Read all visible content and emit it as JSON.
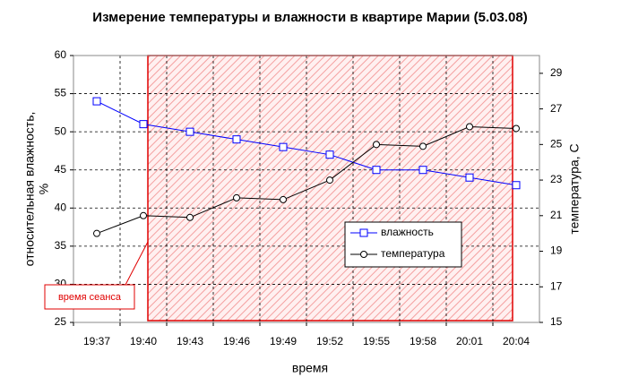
{
  "chart_data": {
    "type": "line",
    "title": "Измерение температуры и влажности в квартире Марии (5.03.08)",
    "x_label": "время",
    "y_label": [
      "относительная влажность,",
      "%"
    ],
    "y2_label": "температура, С",
    "annotation": "время сеанса",
    "categories": [
      "19:37",
      "19:40",
      "19:43",
      "19:46",
      "19:49",
      "19:52",
      "19:55",
      "19:58",
      "20:01",
      "20:04"
    ],
    "series": [
      {
        "name": "влажность",
        "color": "#0000ff",
        "marker": "square",
        "values": [
          54,
          51,
          50,
          49,
          48,
          47,
          45,
          45,
          44,
          43
        ]
      },
      {
        "name": "температура",
        "color": "#000000",
        "marker": "circle",
        "axis": "y2",
        "values": [
          20,
          21,
          20.9,
          22,
          21.9,
          23,
          25,
          24.9,
          26,
          25.9
        ]
      }
    ],
    "ylim": [
      25,
      60
    ],
    "yticks": [
      25,
      30,
      35,
      40,
      45,
      50,
      55,
      60
    ],
    "y2lim": [
      15,
      30
    ],
    "y2ticks": [
      15,
      17,
      19,
      21,
      23,
      25,
      27,
      29
    ],
    "grid": true
  }
}
